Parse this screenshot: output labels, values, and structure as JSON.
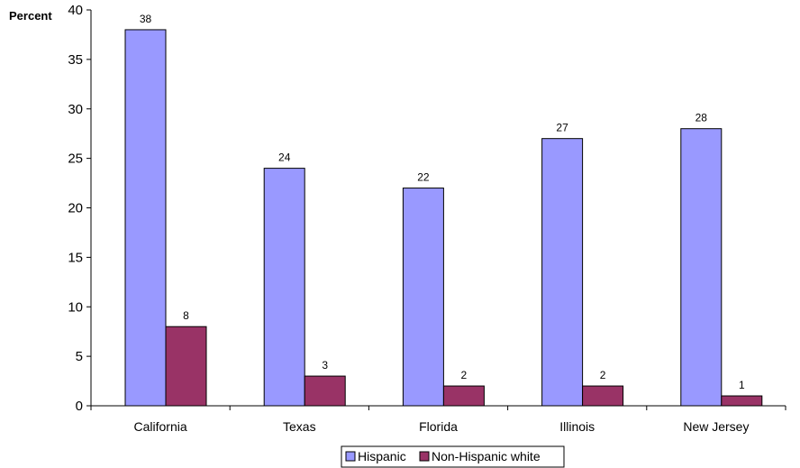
{
  "chart_data": {
    "type": "bar",
    "ylabel": "Percent",
    "xlabel": "",
    "title": "",
    "ylim": [
      0,
      40
    ],
    "ytick_step": 5,
    "categories": [
      "California",
      "Texas",
      "Florida",
      "Illinois",
      "New Jersey"
    ],
    "series": [
      {
        "name": "Hispanic",
        "values": [
          38,
          24,
          22,
          27,
          28
        ],
        "color": "#9999ff"
      },
      {
        "name": "Non-Hispanic white",
        "values": [
          8,
          3,
          2,
          2,
          1
        ],
        "color": "#993366"
      }
    ],
    "data_labels": true,
    "grid": false,
    "legend_position": "bottom"
  }
}
